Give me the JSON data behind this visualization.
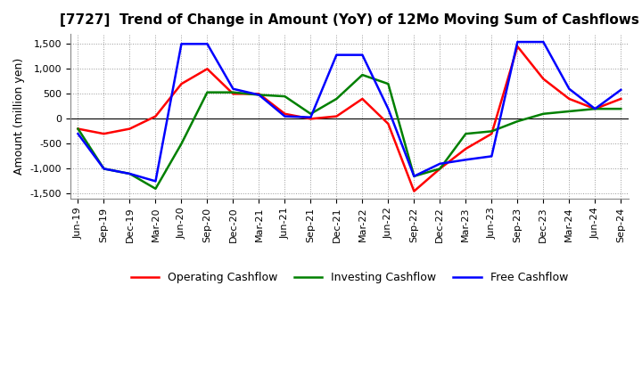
{
  "title": "[7727]  Trend of Change in Amount (YoY) of 12Mo Moving Sum of Cashflows",
  "ylabel": "Amount (million yen)",
  "x_labels": [
    "Jun-19",
    "Sep-19",
    "Dec-19",
    "Mar-20",
    "Jun-20",
    "Sep-20",
    "Dec-20",
    "Mar-21",
    "Jun-21",
    "Sep-21",
    "Dec-21",
    "Mar-22",
    "Jun-22",
    "Sep-22",
    "Dec-22",
    "Mar-23",
    "Jun-23",
    "Sep-23",
    "Dec-23",
    "Mar-24",
    "Jun-24",
    "Sep-24"
  ],
  "operating": [
    -200,
    -300,
    -200,
    50,
    700,
    1000,
    500,
    500,
    100,
    0,
    50,
    400,
    -100,
    -1450,
    -1000,
    -600,
    -300,
    1450,
    800,
    400,
    200,
    400
  ],
  "investing": [
    -200,
    -1000,
    -1100,
    -1400,
    -500,
    530,
    530,
    480,
    450,
    100,
    400,
    880,
    700,
    -1150,
    -1000,
    -300,
    -250,
    -50,
    100,
    150,
    200,
    200
  ],
  "free": [
    -300,
    -1000,
    -1100,
    -1250,
    1500,
    1500,
    600,
    480,
    50,
    30,
    1280,
    1280,
    200,
    -1150,
    -900,
    -820,
    -750,
    1540,
    1540,
    600,
    200,
    580
  ],
  "operating_color": "#ff0000",
  "investing_color": "#008000",
  "free_color": "#0000ff",
  "ylim": [
    -1600,
    1700
  ],
  "yticks": [
    -1500,
    -1000,
    -500,
    0,
    500,
    1000,
    1500
  ],
  "background_color": "#ffffff",
  "grid_color": "#999999",
  "line_width": 1.8,
  "title_fontsize": 11,
  "axis_fontsize": 9,
  "tick_fontsize": 8,
  "legend_fontsize": 9
}
